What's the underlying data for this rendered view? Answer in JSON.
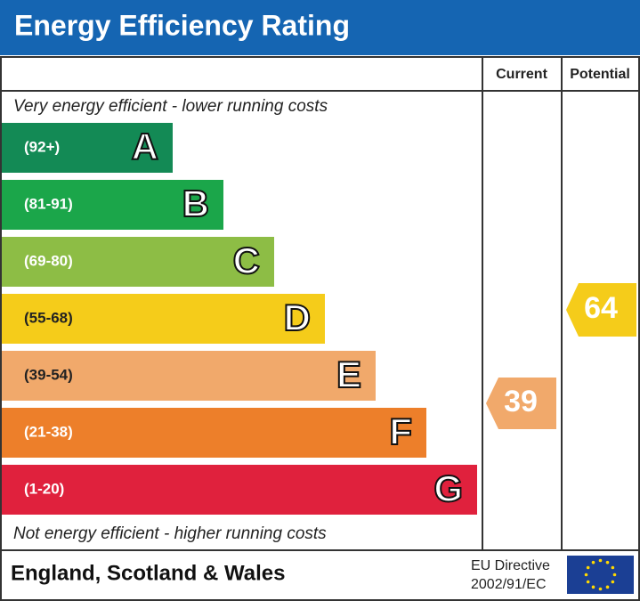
{
  "header": {
    "title": "Energy Efficiency Rating"
  },
  "columns": [
    "Current",
    "Potential"
  ],
  "top_note": "Very energy efficient - lower running costs",
  "bottom_note": "Not energy efficient - higher running costs",
  "bands": [
    {
      "range": "(92+)",
      "letter": "A",
      "color": "#138a55"
    },
    {
      "range": "(81-91)",
      "letter": "B",
      "color": "#1ba64a"
    },
    {
      "range": "(69-80)",
      "letter": "C",
      "color": "#8dbd45"
    },
    {
      "range": "(55-68)",
      "letter": "D",
      "color": "#f5cc1a"
    },
    {
      "range": "(39-54)",
      "letter": "E",
      "color": "#f1a96b"
    },
    {
      "range": "(21-38)",
      "letter": "F",
      "color": "#ed7f2a"
    },
    {
      "range": "(1-20)",
      "letter": "G",
      "color": "#e0213d"
    }
  ],
  "current": {
    "value": "39",
    "color": "#f1a96b"
  },
  "potential": {
    "value": "64",
    "color": "#f5cc1a"
  },
  "footer": {
    "region": "England, Scotland & Wales",
    "directive_line1": "EU Directive",
    "directive_line2": "2002/91/EC"
  }
}
